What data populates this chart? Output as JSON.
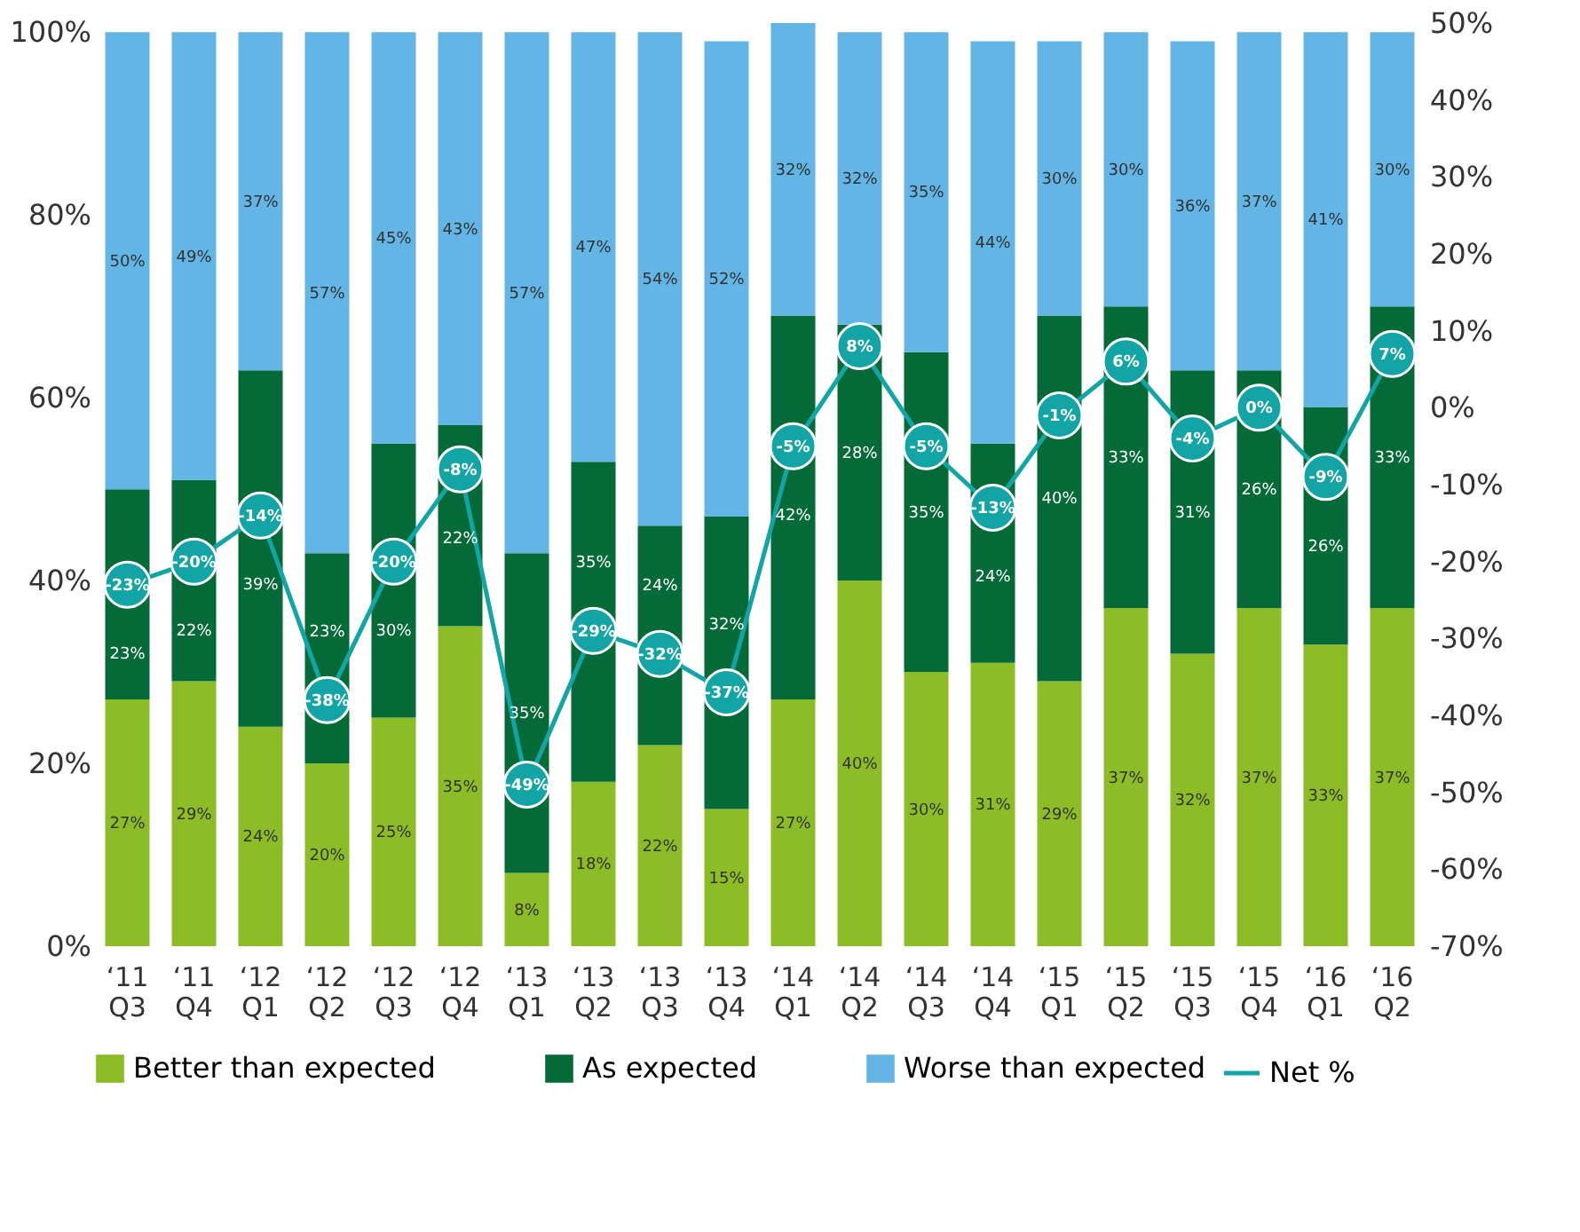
{
  "chart_data": {
    "type": "bar",
    "stacked": true,
    "categories": [
      "‘11 Q3",
      "‘11 Q4",
      "‘12 Q1",
      "‘12 Q2",
      "‘12 Q3",
      "‘12 Q4",
      "‘13 Q1",
      "‘13 Q2",
      "‘13 Q3",
      "‘13 Q4",
      "‘14 Q1",
      "‘14 Q2",
      "‘14 Q3",
      "‘14 Q4",
      "‘15 Q1",
      "‘15 Q2",
      "‘15 Q3",
      "‘15 Q4",
      "‘16 Q1",
      "‘16 Q2"
    ],
    "series": [
      {
        "name": "Better than expected",
        "color": "#8cbd26",
        "values": [
          27,
          29,
          24,
          20,
          25,
          35,
          8,
          18,
          22,
          15,
          27,
          40,
          30,
          31,
          29,
          37,
          32,
          37,
          33,
          37
        ],
        "value_labels": [
          "27%",
          "29%",
          "24%",
          "20%",
          "25%",
          "35%",
          "8%",
          "18%",
          "22%",
          "15%",
          "27%",
          "40%",
          "30%",
          "31%",
          "29%",
          "37%",
          "32%",
          "37%",
          "33%",
          "37%"
        ]
      },
      {
        "name": "As expected",
        "color": "#046a38",
        "values": [
          23,
          22,
          39,
          23,
          30,
          22,
          35,
          35,
          24,
          32,
          42,
          28,
          35,
          24,
          40,
          33,
          31,
          26,
          26,
          33
        ],
        "value_labels": [
          "23%",
          "22%",
          "39%",
          "23%",
          "30%",
          "22%",
          "35%",
          "35%",
          "24%",
          "32%",
          "42%",
          "28%",
          "35%",
          "24%",
          "40%",
          "33%",
          "31%",
          "26%",
          "26%",
          "33%"
        ]
      },
      {
        "name": "Worse than expected",
        "color": "#62b5e5",
        "values": [
          50,
          49,
          37,
          57,
          45,
          43,
          57,
          47,
          54,
          52,
          32,
          32,
          35,
          44,
          30,
          30,
          36,
          37,
          41,
          30
        ],
        "value_labels": [
          "50%",
          "49%",
          "37%",
          "57%",
          "45%",
          "43%",
          "57%",
          "47%",
          "54%",
          "52%",
          "32%",
          "32%",
          "35%",
          "44%",
          "30%",
          "30%",
          "36%",
          "37%",
          "41%",
          "30%"
        ]
      },
      {
        "name": "Net %",
        "type": "line",
        "axis": "y2",
        "color": "#13a5a5",
        "marker": "circle",
        "line_style": "solid",
        "values": [
          -23,
          -20,
          -14,
          -38,
          -20,
          -8,
          -49,
          -29,
          -32,
          -37,
          -5,
          8,
          -5,
          -13,
          -1,
          6,
          -4,
          0,
          -9,
          7
        ],
        "value_labels": [
          "-23%",
          "-20%",
          "-14%",
          "-38%",
          "-20%",
          "-8%",
          "-49%",
          "-29%",
          "-32%",
          "-37%",
          "-5%",
          "8%",
          "-5%",
          "-13%",
          "-1%",
          "6%",
          "-4%",
          "0%",
          "-9%",
          "7%"
        ]
      }
    ],
    "ylim": [
      0,
      101
    ],
    "yticks": [
      {
        "value": 0,
        "label": "0%"
      },
      {
        "value": 20,
        "label": "20%"
      },
      {
        "value": 40,
        "label": "40%"
      },
      {
        "value": 60,
        "label": "60%"
      },
      {
        "value": 80,
        "label": "80%"
      },
      {
        "value": 100,
        "label": "100%"
      }
    ],
    "y2lim": [
      -70,
      50
    ],
    "y2ticks": [
      {
        "value": -70,
        "label": "-70%"
      },
      {
        "value": -60,
        "label": "-60%"
      },
      {
        "value": -50,
        "label": "-50%"
      },
      {
        "value": -40,
        "label": "-40%"
      },
      {
        "value": -30,
        "label": "-30%"
      },
      {
        "value": -20,
        "label": "-20%"
      },
      {
        "value": -10,
        "label": "-10%"
      },
      {
        "value": 0,
        "label": "0%"
      },
      {
        "value": 10,
        "label": "10%"
      },
      {
        "value": 20,
        "label": "20%"
      },
      {
        "value": 30,
        "label": "30%"
      },
      {
        "value": 40,
        "label": "40%"
      },
      {
        "value": 50,
        "label": "50%"
      }
    ],
    "grid": false,
    "legend": "bottom"
  }
}
